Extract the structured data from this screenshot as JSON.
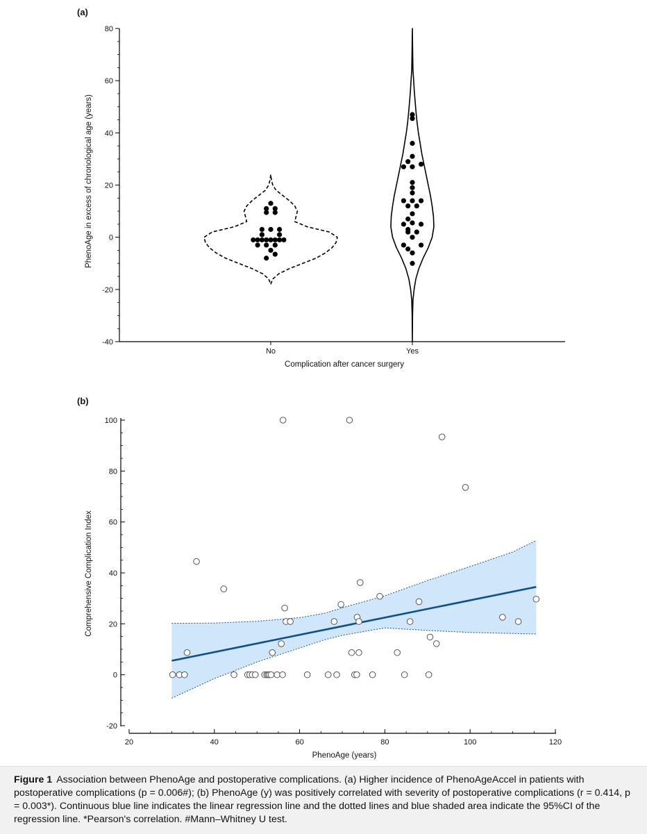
{
  "figure": {
    "caption_label": "Figure 1",
    "caption_text": "Association between PhenoAge and postoperative complications. (a) Higher incidence of PhenoAgeAccel in patients with postoperative complications (p = 0.006#); (b) PhenoAge (y) was positively correlated with severity of postoperative complications (r = 0.414, p = 0.003*). Continuous blue line indicates the linear regression line and the dotted lines and blue shaded area indicate the 95%CI of the regression line. *Pearson's correlation. #Mann–Whitney U test."
  },
  "chart_data": [
    {
      "panel_label": "(a)",
      "type": "scatter",
      "subtype": "violin-dotplot",
      "xlabel": "Complication after cancer surgery",
      "ylabel": "PhenoAge in excess of chronological age (years)",
      "ylim": [
        -40,
        80
      ],
      "yticks": [
        -40,
        -20,
        0,
        20,
        40,
        60,
        80
      ],
      "categories": [
        "No",
        "Yes"
      ],
      "groups": [
        {
          "name": "No",
          "dot_color": "#000000",
          "violin_style": "dashed",
          "violin_range": [
            -18,
            24
          ],
          "violin_profile": [
            [
              -18,
              0.0
            ],
            [
              -16,
              0.03
            ],
            [
              -14,
              0.12
            ],
            [
              -12,
              0.28
            ],
            [
              -10,
              0.48
            ],
            [
              -8,
              0.68
            ],
            [
              -6,
              0.82
            ],
            [
              -4,
              0.92
            ],
            [
              -2,
              0.98
            ],
            [
              0,
              1.0
            ],
            [
              2,
              0.88
            ],
            [
              4,
              0.55
            ],
            [
              6,
              0.36
            ],
            [
              8,
              0.38
            ],
            [
              10,
              0.4
            ],
            [
              12,
              0.36
            ],
            [
              14,
              0.28
            ],
            [
              16,
              0.18
            ],
            [
              18,
              0.08
            ],
            [
              20,
              0.03
            ],
            [
              22,
              0.01
            ],
            [
              24,
              0.0
            ]
          ],
          "points": [
            {
              "dx": 0,
              "y": 13
            },
            {
              "dx": -1,
              "y": 11
            },
            {
              "dx": 1,
              "y": 11
            },
            {
              "dx": -1,
              "y": 9.5
            },
            {
              "dx": 1,
              "y": 9.5
            },
            {
              "dx": -2,
              "y": 3
            },
            {
              "dx": 0,
              "y": 3
            },
            {
              "dx": 2,
              "y": 3
            },
            {
              "dx": -2,
              "y": 1
            },
            {
              "dx": 2,
              "y": 1
            },
            {
              "dx": -4,
              "y": -1
            },
            {
              "dx": -3,
              "y": -1
            },
            {
              "dx": -2,
              "y": -1
            },
            {
              "dx": -1,
              "y": -1
            },
            {
              "dx": 0,
              "y": -1
            },
            {
              "dx": 1,
              "y": -1
            },
            {
              "dx": 2,
              "y": -1
            },
            {
              "dx": 3,
              "y": -1
            },
            {
              "dx": -3,
              "y": -3
            },
            {
              "dx": -1,
              "y": -3
            },
            {
              "dx": 1,
              "y": -3
            },
            {
              "dx": 0,
              "y": -5
            },
            {
              "dx": 1,
              "y": -6.5
            },
            {
              "dx": -1,
              "y": -8
            }
          ]
        },
        {
          "name": "Yes",
          "dot_color": "#000000",
          "violin_style": "solid",
          "violin_range": [
            -40,
            80
          ],
          "violin_profile": [
            [
              -40,
              0.0
            ],
            [
              -30,
              0.01
            ],
            [
              -24,
              0.03
            ],
            [
              -20,
              0.08
            ],
            [
              -16,
              0.16
            ],
            [
              -12,
              0.3
            ],
            [
              -8,
              0.5
            ],
            [
              -4,
              0.74
            ],
            [
              0,
              0.92
            ],
            [
              4,
              1.0
            ],
            [
              8,
              0.98
            ],
            [
              12,
              0.92
            ],
            [
              16,
              0.84
            ],
            [
              20,
              0.74
            ],
            [
              24,
              0.64
            ],
            [
              28,
              0.54
            ],
            [
              32,
              0.44
            ],
            [
              36,
              0.36
            ],
            [
              40,
              0.28
            ],
            [
              44,
              0.22
            ],
            [
              48,
              0.17
            ],
            [
              52,
              0.13
            ],
            [
              56,
              0.09
            ],
            [
              60,
              0.06
            ],
            [
              64,
              0.03
            ],
            [
              70,
              0.015
            ],
            [
              80,
              0.0
            ]
          ],
          "points": [
            {
              "dx": 0,
              "y": 47
            },
            {
              "dx": 0,
              "y": 45.5
            },
            {
              "dx": 0,
              "y": 36
            },
            {
              "dx": 0,
              "y": 31
            },
            {
              "dx": -1,
              "y": 29
            },
            {
              "dx": -2,
              "y": 27
            },
            {
              "dx": 0,
              "y": 27
            },
            {
              "dx": 2,
              "y": 28
            },
            {
              "dx": 0,
              "y": 21
            },
            {
              "dx": 0,
              "y": 19
            },
            {
              "dx": 0,
              "y": 17
            },
            {
              "dx": -2,
              "y": 14
            },
            {
              "dx": 0,
              "y": 14
            },
            {
              "dx": 2,
              "y": 14
            },
            {
              "dx": -1,
              "y": 12
            },
            {
              "dx": 1,
              "y": 12
            },
            {
              "dx": 0,
              "y": 9
            },
            {
              "dx": -1,
              "y": 7
            },
            {
              "dx": -2,
              "y": 5
            },
            {
              "dx": 0,
              "y": 5.5
            },
            {
              "dx": 2,
              "y": 5
            },
            {
              "dx": -1,
              "y": 3
            },
            {
              "dx": -1,
              "y": 2
            },
            {
              "dx": 1,
              "y": 2
            },
            {
              "dx": 0,
              "y": 0
            },
            {
              "dx": -2,
              "y": -3
            },
            {
              "dx": 2,
              "y": -3
            },
            {
              "dx": -1,
              "y": -4.5
            },
            {
              "dx": 0,
              "y": -6
            },
            {
              "dx": 0,
              "y": -10
            }
          ]
        }
      ]
    },
    {
      "panel_label": "(b)",
      "type": "scatter",
      "xlabel": "PhenoAge (years)",
      "ylabel": "Comprehensive Complication Index",
      "xlim": [
        20,
        120
      ],
      "ylim": [
        -20,
        100
      ],
      "xticks": [
        20,
        40,
        60,
        80,
        100,
        120
      ],
      "yticks": [
        -20,
        0,
        20,
        40,
        60,
        80,
        100
      ],
      "points": [
        {
          "x": 30.2,
          "y": 0
        },
        {
          "x": 31.8,
          "y": 0
        },
        {
          "x": 33.0,
          "y": 0
        },
        {
          "x": 33.6,
          "y": 8.7
        },
        {
          "x": 35.8,
          "y": 44.5
        },
        {
          "x": 42.2,
          "y": 33.7
        },
        {
          "x": 44.6,
          "y": 0
        },
        {
          "x": 47.8,
          "y": 0
        },
        {
          "x": 48.3,
          "y": 0
        },
        {
          "x": 48.9,
          "y": 0
        },
        {
          "x": 49.6,
          "y": 0
        },
        {
          "x": 51.8,
          "y": 0
        },
        {
          "x": 52.3,
          "y": 0
        },
        {
          "x": 52.6,
          "y": 0
        },
        {
          "x": 52.9,
          "y": 0
        },
        {
          "x": 53.3,
          "y": 0
        },
        {
          "x": 53.6,
          "y": 8.7
        },
        {
          "x": 54.7,
          "y": 0
        },
        {
          "x": 55.7,
          "y": 12.2
        },
        {
          "x": 56.0,
          "y": 0
        },
        {
          "x": 56.1,
          "y": 100
        },
        {
          "x": 56.5,
          "y": 26.2
        },
        {
          "x": 56.8,
          "y": 20.9
        },
        {
          "x": 57.8,
          "y": 20.9
        },
        {
          "x": 61.8,
          "y": 0
        },
        {
          "x": 66.7,
          "y": 0
        },
        {
          "x": 68.1,
          "y": 20.9
        },
        {
          "x": 68.7,
          "y": 0
        },
        {
          "x": 69.7,
          "y": 27.6
        },
        {
          "x": 71.7,
          "y": 100
        },
        {
          "x": 72.2,
          "y": 8.7
        },
        {
          "x": 72.9,
          "y": 0
        },
        {
          "x": 73.4,
          "y": 0
        },
        {
          "x": 73.5,
          "y": 22.6
        },
        {
          "x": 73.9,
          "y": 8.7
        },
        {
          "x": 73.9,
          "y": 20.9
        },
        {
          "x": 74.2,
          "y": 36.2
        },
        {
          "x": 77.1,
          "y": 0
        },
        {
          "x": 78.8,
          "y": 30.8
        },
        {
          "x": 82.9,
          "y": 8.7
        },
        {
          "x": 84.6,
          "y": 0
        },
        {
          "x": 85.9,
          "y": 20.9
        },
        {
          "x": 88.0,
          "y": 28.7
        },
        {
          "x": 90.3,
          "y": 0
        },
        {
          "x": 90.6,
          "y": 14.8
        },
        {
          "x": 92.1,
          "y": 12.2
        },
        {
          "x": 93.4,
          "y": 93.4
        },
        {
          "x": 98.9,
          "y": 73.6
        },
        {
          "x": 107.6,
          "y": 22.6
        },
        {
          "x": 111.3,
          "y": 20.9
        },
        {
          "x": 115.5,
          "y": 29.7
        }
      ],
      "regression_line": {
        "x": [
          30,
          115.5
        ],
        "y": [
          5.5,
          34.5
        ],
        "color": "#0d4f8f"
      },
      "confidence_band": {
        "x": [
          30,
          40,
          50,
          60,
          66,
          70,
          80,
          90,
          100,
          110,
          115.5
        ],
        "lower": [
          -9.2,
          -1.5,
          5.0,
          10.5,
          13.8,
          15.5,
          18.4,
          17.4,
          16.6,
          16.2,
          16.0
        ],
        "upper": [
          20.2,
          20.3,
          21.0,
          22.4,
          24.2,
          26.3,
          31.0,
          37.0,
          42.5,
          48.2,
          52.7
        ],
        "fill": "#cfe6fb",
        "line_color": "#1e4f96"
      }
    }
  ]
}
